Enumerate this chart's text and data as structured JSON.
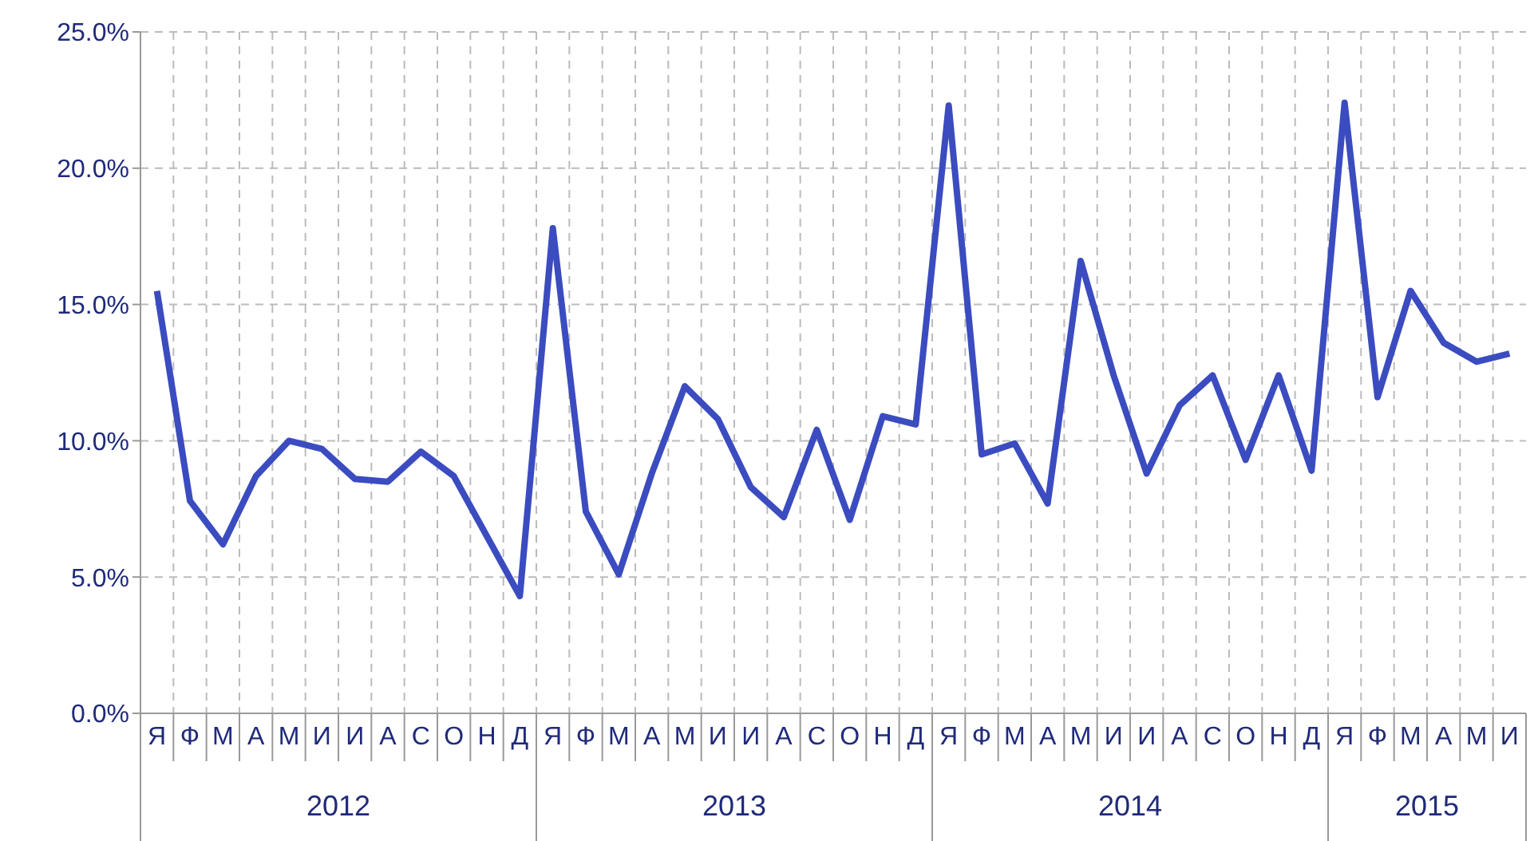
{
  "chart_data": {
    "type": "line",
    "categories": [
      "Я",
      "Ф",
      "М",
      "А",
      "М",
      "И",
      "И",
      "А",
      "С",
      "О",
      "Н",
      "Д",
      "Я",
      "Ф",
      "М",
      "А",
      "М",
      "И",
      "И",
      "А",
      "С",
      "О",
      "Н",
      "Д",
      "Я",
      "Ф",
      "М",
      "А",
      "М",
      "И",
      "И",
      "А",
      "С",
      "О",
      "Н",
      "Д",
      "Я",
      "Ф",
      "М",
      "А",
      "М",
      "И"
    ],
    "series": [
      {
        "color": "#3b4cc0",
        "values": [
          15.5,
          7.8,
          6.2,
          8.7,
          10.0,
          9.7,
          8.6,
          8.5,
          9.6,
          8.7,
          6.5,
          4.3,
          17.8,
          7.4,
          5.1,
          8.8,
          12.0,
          10.8,
          8.3,
          7.2,
          10.4,
          7.1,
          10.9,
          10.6,
          22.3,
          9.5,
          9.9,
          7.7,
          16.6,
          12.4,
          8.8,
          11.3,
          12.4,
          9.3,
          12.4,
          8.9,
          22.4,
          11.6,
          15.5,
          13.6,
          12.9,
          13.2
        ]
      }
    ],
    "annotations": [
      "2012",
      "2013",
      "2014",
      "2015"
    ],
    "ylim": [
      0,
      25
    ],
    "yticks": [
      {
        "value": 0,
        "label": "0.0%"
      },
      {
        "value": 5,
        "label": "5.0%"
      },
      {
        "value": 10,
        "label": "10.0%"
      },
      {
        "value": 15,
        "label": "15.0%"
      },
      {
        "value": 20,
        "label": "20.0%"
      },
      {
        "value": 25,
        "label": "25.0%"
      }
    ],
    "grid": true,
    "marker": "none",
    "line_style": "solid"
  }
}
